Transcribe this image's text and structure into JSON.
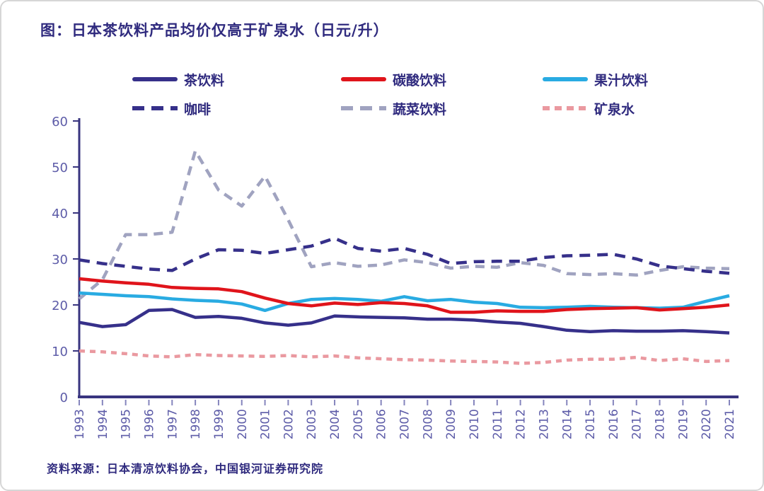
{
  "title": "图：日本茶饮料产品均价仅高于矿泉水（日元/升）",
  "source": "资料来源：日本清凉饮料协会，中国银河证券研究院",
  "colors": {
    "title_text": "#2f2a7e",
    "axis_line": "#38347f",
    "tick_label": "#5d5ca8",
    "tick_mark": "#8585bd"
  },
  "chart_data": {
    "type": "line",
    "title": "图：日本茶饮料产品均价仅高于矿泉水（日元/升）",
    "xlabel": "",
    "ylabel": "",
    "ylim": [
      0,
      60
    ],
    "ytick_step": 10,
    "grid": false,
    "legend_position": "top",
    "categories": [
      "1993",
      "1994",
      "1995",
      "1996",
      "1997",
      "1998",
      "1999",
      "2000",
      "2001",
      "2002",
      "2003",
      "2004",
      "2005",
      "2006",
      "2007",
      "2008",
      "2009",
      "2010",
      "2011",
      "2012",
      "2013",
      "2014",
      "2015",
      "2016",
      "2017",
      "2018",
      "2019",
      "2020",
      "2021"
    ],
    "series": [
      {
        "name": "茶饮料",
        "color": "#36308a",
        "style": "solid",
        "values": [
          16.2,
          15.3,
          15.7,
          18.8,
          19.0,
          17.3,
          17.5,
          17.1,
          16.1,
          15.6,
          16.1,
          17.6,
          17.4,
          17.3,
          17.2,
          16.9,
          16.9,
          16.7,
          16.3,
          16.0,
          15.3,
          14.5,
          14.2,
          14.4,
          14.3,
          14.3,
          14.4,
          14.2,
          13.9
        ]
      },
      {
        "name": "碳酸饮料",
        "color": "#e0141b",
        "style": "solid",
        "values": [
          25.7,
          25.2,
          24.8,
          24.5,
          23.8,
          23.6,
          23.5,
          22.9,
          21.5,
          20.3,
          19.8,
          20.4,
          20.1,
          20.5,
          20.3,
          19.8,
          18.4,
          18.4,
          18.7,
          18.6,
          18.6,
          19.0,
          19.2,
          19.3,
          19.4,
          18.9,
          19.2,
          19.5,
          20.0
        ]
      },
      {
        "name": "果汁饮料",
        "color": "#29abe2",
        "style": "solid",
        "values": [
          22.6,
          22.3,
          22.0,
          21.8,
          21.3,
          21.0,
          20.8,
          20.2,
          18.8,
          20.3,
          21.2,
          21.4,
          21.2,
          20.8,
          21.8,
          20.9,
          21.2,
          20.6,
          20.3,
          19.5,
          19.4,
          19.5,
          19.7,
          19.5,
          19.4,
          19.3,
          19.5,
          20.8,
          22.0
        ]
      },
      {
        "name": "咖啡",
        "color": "#36308a",
        "style": "dashed",
        "values": [
          29.8,
          29.0,
          28.4,
          27.8,
          27.5,
          30.0,
          32.0,
          31.9,
          31.2,
          32.0,
          32.8,
          34.5,
          32.3,
          31.7,
          32.3,
          31.0,
          29.0,
          29.4,
          29.5,
          29.5,
          30.3,
          30.7,
          30.8,
          31.0,
          30.0,
          28.5,
          27.9,
          27.3,
          26.9
        ]
      },
      {
        "name": "蔬菜饮料",
        "color": "#a0a3c0",
        "style": "dashed",
        "values": [
          21.3,
          25.5,
          35.3,
          35.3,
          35.8,
          53.5,
          45.0,
          41.5,
          48.0,
          38.5,
          28.3,
          29.2,
          28.4,
          28.7,
          29.8,
          29.2,
          28.0,
          28.4,
          28.2,
          29.2,
          28.6,
          26.8,
          26.6,
          26.8,
          26.5,
          27.5,
          28.3,
          28.0,
          27.9
        ]
      },
      {
        "name": "矿泉水",
        "color": "#ea99a0",
        "style": "dashed",
        "values": [
          10.0,
          9.8,
          9.4,
          8.9,
          8.7,
          9.2,
          9.0,
          8.9,
          8.8,
          9.0,
          8.7,
          8.9,
          8.5,
          8.3,
          8.1,
          8.0,
          7.8,
          7.7,
          7.6,
          7.3,
          7.5,
          8.0,
          8.2,
          8.2,
          8.6,
          7.9,
          8.3,
          7.7,
          7.9
        ]
      }
    ]
  }
}
